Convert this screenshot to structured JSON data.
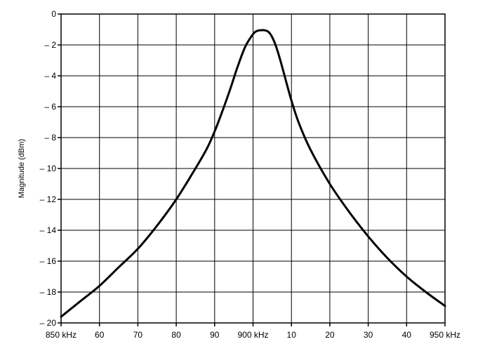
{
  "chart_data": {
    "type": "line",
    "title": "",
    "xlabel": "",
    "ylabel": "Magnitude (dBm)",
    "xlim": [
      850,
      950
    ],
    "ylim": [
      -20,
      0
    ],
    "grid": true,
    "x_ticks": [
      850,
      860,
      870,
      880,
      890,
      900,
      910,
      920,
      930,
      940,
      950
    ],
    "x_tick_labels": [
      "850 kHz",
      "60",
      "70",
      "80",
      "90",
      "900 kHz",
      "10",
      "20",
      "30",
      "40",
      "950 kHz"
    ],
    "y_ticks": [
      0,
      -2,
      -4,
      -6,
      -8,
      -10,
      -12,
      -14,
      -16,
      -18,
      -20
    ],
    "y_tick_labels": [
      "0",
      "– 2",
      "– 4",
      "– 6",
      "– 8",
      "– 10",
      "– 12",
      "– 14",
      "– 16",
      "– 18",
      "– 20"
    ],
    "series": [
      {
        "name": "",
        "color": "#000000",
        "x": [
          850,
          855,
          860,
          865,
          870,
          875,
          880,
          885,
          888,
          890,
          892,
          894,
          896,
          898,
          900,
          901,
          902,
          903,
          904,
          905,
          906,
          907,
          908,
          910,
          912,
          915,
          920,
          925,
          930,
          935,
          940,
          945,
          950
        ],
        "y": [
          -19.6,
          -18.6,
          -17.6,
          -16.4,
          -15.2,
          -13.7,
          -12.0,
          -10.0,
          -8.7,
          -7.6,
          -6.3,
          -4.9,
          -3.4,
          -2.1,
          -1.3,
          -1.1,
          -1.05,
          -1.05,
          -1.15,
          -1.5,
          -2.1,
          -2.9,
          -3.8,
          -5.6,
          -7.1,
          -8.8,
          -11.0,
          -12.8,
          -14.4,
          -15.8,
          -17.0,
          -18.0,
          -18.9
        ]
      }
    ]
  }
}
